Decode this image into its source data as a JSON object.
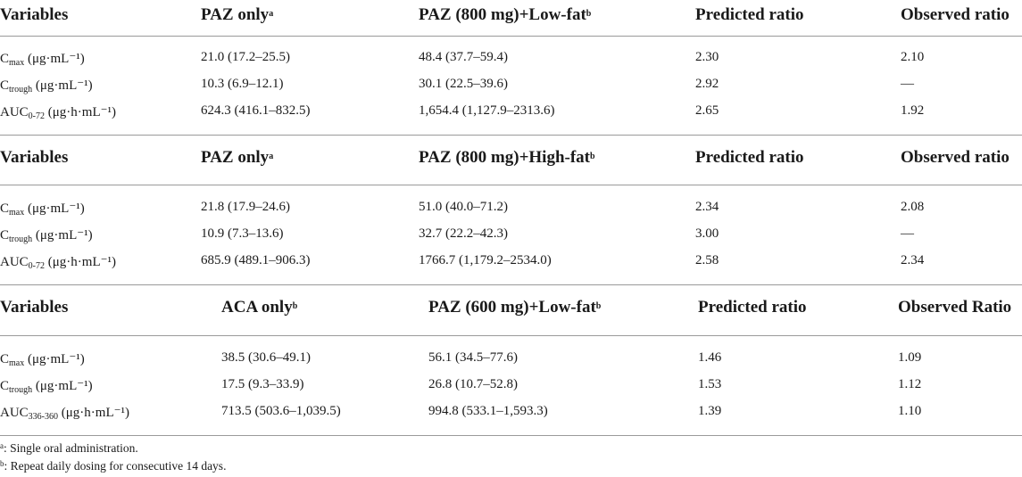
{
  "table": {
    "sections": [
      {
        "headers": [
          {
            "text": "Variables",
            "sup": ""
          },
          {
            "text": "PAZ only",
            "sup": "a"
          },
          {
            "text": "PAZ (800 mg)+Low-fat",
            "sup": "b"
          },
          {
            "text": "Predicted ratio",
            "sup": ""
          },
          {
            "text": "Observed ratio",
            "sup": ""
          }
        ],
        "rows": [
          {
            "var_main": "C",
            "var_sub": "max",
            "var_unit": " (μg·mL⁻¹)",
            "values": [
              "21.0 (17.2–25.5)",
              "48.4 (37.7–59.4)",
              "2.30",
              "2.10"
            ]
          },
          {
            "var_main": "C",
            "var_sub": "trough",
            "var_unit": " (μg·mL⁻¹)",
            "values": [
              "10.3 (6.9–12.1)",
              "30.1 (22.5–39.6)",
              "2.92",
              "—"
            ]
          },
          {
            "var_main": "AUC",
            "var_sub": "0-72",
            "var_unit": " (μg·h·mL⁻¹)",
            "values": [
              "624.3 (416.1–832.5)",
              "1,654.4 (1,127.9–2313.6)",
              "2.65",
              "1.92"
            ]
          }
        ]
      },
      {
        "headers": [
          {
            "text": "Variables",
            "sup": ""
          },
          {
            "text": "PAZ only",
            "sup": "a"
          },
          {
            "text": "PAZ (800 mg)+High-fat",
            "sup": "b"
          },
          {
            "text": "Predicted ratio",
            "sup": ""
          },
          {
            "text": "Observed ratio",
            "sup": ""
          }
        ],
        "rows": [
          {
            "var_main": "C",
            "var_sub": "max",
            "var_unit": " (μg·mL⁻¹)",
            "values": [
              "21.8 (17.9–24.6)",
              "51.0 (40.0–71.2)",
              "2.34",
              "2.08"
            ]
          },
          {
            "var_main": "C",
            "var_sub": "trough",
            "var_unit": " (μg·mL⁻¹)",
            "values": [
              "10.9 (7.3–13.6)",
              "32.7 (22.2–42.3)",
              "3.00",
              "—"
            ]
          },
          {
            "var_main": "AUC",
            "var_sub": "0-72",
            "var_unit": " (μg·h·mL⁻¹)",
            "values": [
              "685.9 (489.1–906.3)",
              "1766.7 (1,179.2–2534.0)",
              "2.58",
              "2.34"
            ]
          }
        ]
      },
      {
        "headers": [
          {
            "text": "Variables",
            "sup": ""
          },
          {
            "text": "ACA only",
            "sup": "b"
          },
          {
            "text": "PAZ (600 mg)+Low-fat",
            "sup": "b"
          },
          {
            "text": "Predicted ratio",
            "sup": ""
          },
          {
            "text": "Observed Ratio",
            "sup": ""
          }
        ],
        "rows": [
          {
            "var_main": "C",
            "var_sub": "max",
            "var_unit": " (μg·mL⁻¹)",
            "values": [
              "38.5 (30.6–49.1)",
              "56.1 (34.5–77.6)",
              "1.46",
              "1.09"
            ]
          },
          {
            "var_main": "C",
            "var_sub": "trough",
            "var_unit": " (μg·mL⁻¹)",
            "values": [
              "17.5 (9.3–33.9)",
              "26.8 (10.7–52.8)",
              "1.53",
              "1.12"
            ]
          },
          {
            "var_main": "AUC",
            "var_sub": "336-360",
            "var_unit": " (μg·h·mL⁻¹)",
            "values": [
              "713.5 (503.6–1,039.5)",
              "994.8 (533.1–1,593.3)",
              "1.39",
              "1.10"
            ]
          }
        ]
      }
    ],
    "footnotes": [
      {
        "sup": "a",
        "text": ": Single oral administration."
      },
      {
        "sup": "b",
        "text": ": Repeat daily dosing for consecutive 14 days."
      }
    ]
  }
}
